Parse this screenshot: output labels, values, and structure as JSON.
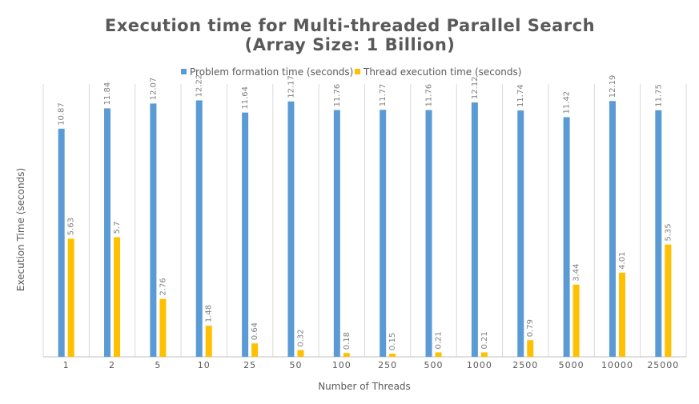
{
  "chart_data": {
    "type": "bar",
    "title_lines": [
      "Execution time for Multi-threaded Parallel Search",
      "(Array Size: 1 Billion)"
    ],
    "xlabel": "Number of Threads",
    "ylabel": "Execution Time (seconds)",
    "categories": [
      "1",
      "2",
      "5",
      "10",
      "25",
      "50",
      "100",
      "250",
      "500",
      "1000",
      "2500",
      "5000",
      "10000",
      "25000"
    ],
    "series": [
      {
        "name": "Problem formation time (seconds)",
        "color": "#5b9bd5",
        "values": [
          10.87,
          11.84,
          12.07,
          12.22,
          11.64,
          12.17,
          11.76,
          11.77,
          11.76,
          12.12,
          11.74,
          11.42,
          12.19,
          11.75
        ]
      },
      {
        "name": "Thread execution time (seconds)",
        "color": "#ffc000",
        "values": [
          5.63,
          5.7,
          2.76,
          1.48,
          0.64,
          0.32,
          0.18,
          0.15,
          0.21,
          0.21,
          0.79,
          3.44,
          4.01,
          5.35
        ]
      }
    ],
    "legend_position": "top",
    "grid": "vertical-category-lines",
    "ylim": [
      0,
      13
    ]
  }
}
